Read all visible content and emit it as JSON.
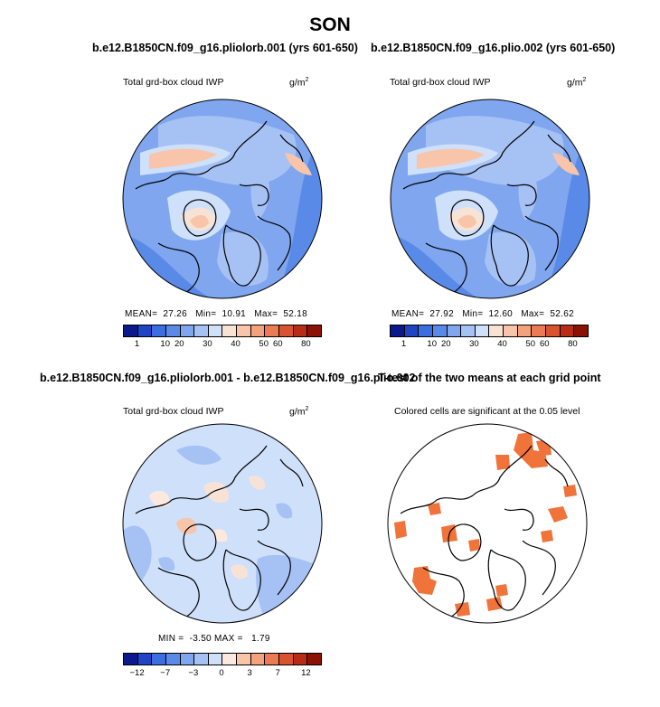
{
  "title": "SON",
  "panels": {
    "top_left": {
      "title": "b.e12.B1850CN.f09_g16.pliolorb.001 (yrs 601-650)",
      "variable": "Total grd-box cloud IWP",
      "units": "g/m",
      "units_exp": "2",
      "stats": {
        "mean_label": "MEAN=",
        "mean": "27.26",
        "min_label": "Min=",
        "min": "10.91",
        "max_label": "Max=",
        "max": "52.18"
      }
    },
    "top_right": {
      "title": "b.e12.B1850CN.f09_g16.plio.002 (yrs 601-650)",
      "variable": "Total grd-box cloud IWP",
      "units": "g/m",
      "units_exp": "2",
      "stats": {
        "mean_label": "MEAN=",
        "mean": "27.92",
        "min_label": "Min=",
        "min": "12.60",
        "max_label": "Max=",
        "max": "52.62"
      }
    },
    "bottom_left": {
      "title": "b.e12.B1850CN.f09_g16.pliolorb.001 - b.e12.B1850CN.f09_g16.plio.002",
      "variable": "Total grd-box cloud IWP",
      "units": "g/m",
      "units_exp": "2",
      "stats": {
        "min_label": "MIN =",
        "min": "-3.50",
        "max_label": "MAX =",
        "max": "1.79"
      }
    },
    "bottom_right": {
      "title": "T-test of the two means at each grid point",
      "subtitle": "Colored cells are significant at the 0.05 level"
    }
  },
  "colorbars": {
    "absolute": {
      "colors": [
        "#0a1a8c",
        "#1f44c4",
        "#3b6ee0",
        "#5a8ae8",
        "#7fa6ee",
        "#a6c2f4",
        "#cfe0fa",
        "#f7e3d6",
        "#f8c5aa",
        "#f4a27c",
        "#ec7a52",
        "#d9532f",
        "#b82c16",
        "#8c1205"
      ],
      "labels": [
        "1",
        "10",
        "20",
        "30",
        "40",
        "50",
        "60",
        "80"
      ]
    },
    "difference": {
      "colors": [
        "#0a1a8c",
        "#1f44c4",
        "#3b6ee0",
        "#5a8ae8",
        "#7fa6ee",
        "#a6c2f4",
        "#cfe0fa",
        "#fbe9e0",
        "#f8c5aa",
        "#f4a27c",
        "#ec7a52",
        "#d9532f",
        "#b82c16",
        "#8c1205"
      ],
      "labels": [
        "-12",
        "-7",
        "-3",
        "0",
        "3",
        "7",
        "12"
      ]
    }
  },
  "colors": {
    "ttest": "#f0733a",
    "land": "#000000"
  }
}
